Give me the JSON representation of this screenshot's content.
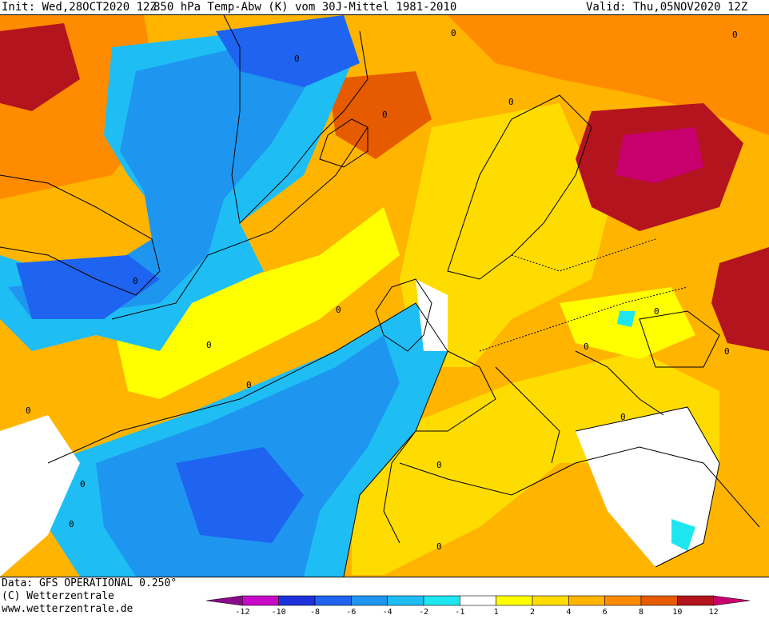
{
  "header": {
    "init": "Init: Wed,28OCT2020 12Z",
    "title": "850 hPa Temp-Abw (K) vom 30J-Mittel 1981-2010",
    "valid": "Valid: Thu,05NOV2020 12Z"
  },
  "footer": {
    "data_source": "Data: GFS OPERATIONAL 0.250°",
    "copyright": "(C) Wetterzentrale",
    "url": "www.wetterzentrale.de"
  },
  "legend": {
    "ticks": [
      "-12",
      "-10",
      "-8",
      "-6",
      "-4",
      "-2",
      "-1",
      "1",
      "2",
      "4",
      "6",
      "8",
      "10",
      "12"
    ],
    "colors": [
      "#8b0a8b",
      "#c80ac8",
      "#1e32dc",
      "#1e64f0",
      "#1e96f0",
      "#1ebef5",
      "#1ee6f0",
      "#ffffff",
      "#ffff00",
      "#ffdc00",
      "#ffb400",
      "#ff8c00",
      "#e65a00",
      "#b4141e",
      "#c8006e"
    ]
  },
  "contour_labels": [
    "0",
    "0",
    "0",
    "0",
    "0",
    "0",
    "0",
    "0",
    "0",
    "0",
    "0",
    "0",
    "0",
    "0",
    "0",
    "0",
    "0",
    "0"
  ],
  "colors": {
    "warm_bg": "#ffb400",
    "cold": "#1e96f0"
  }
}
